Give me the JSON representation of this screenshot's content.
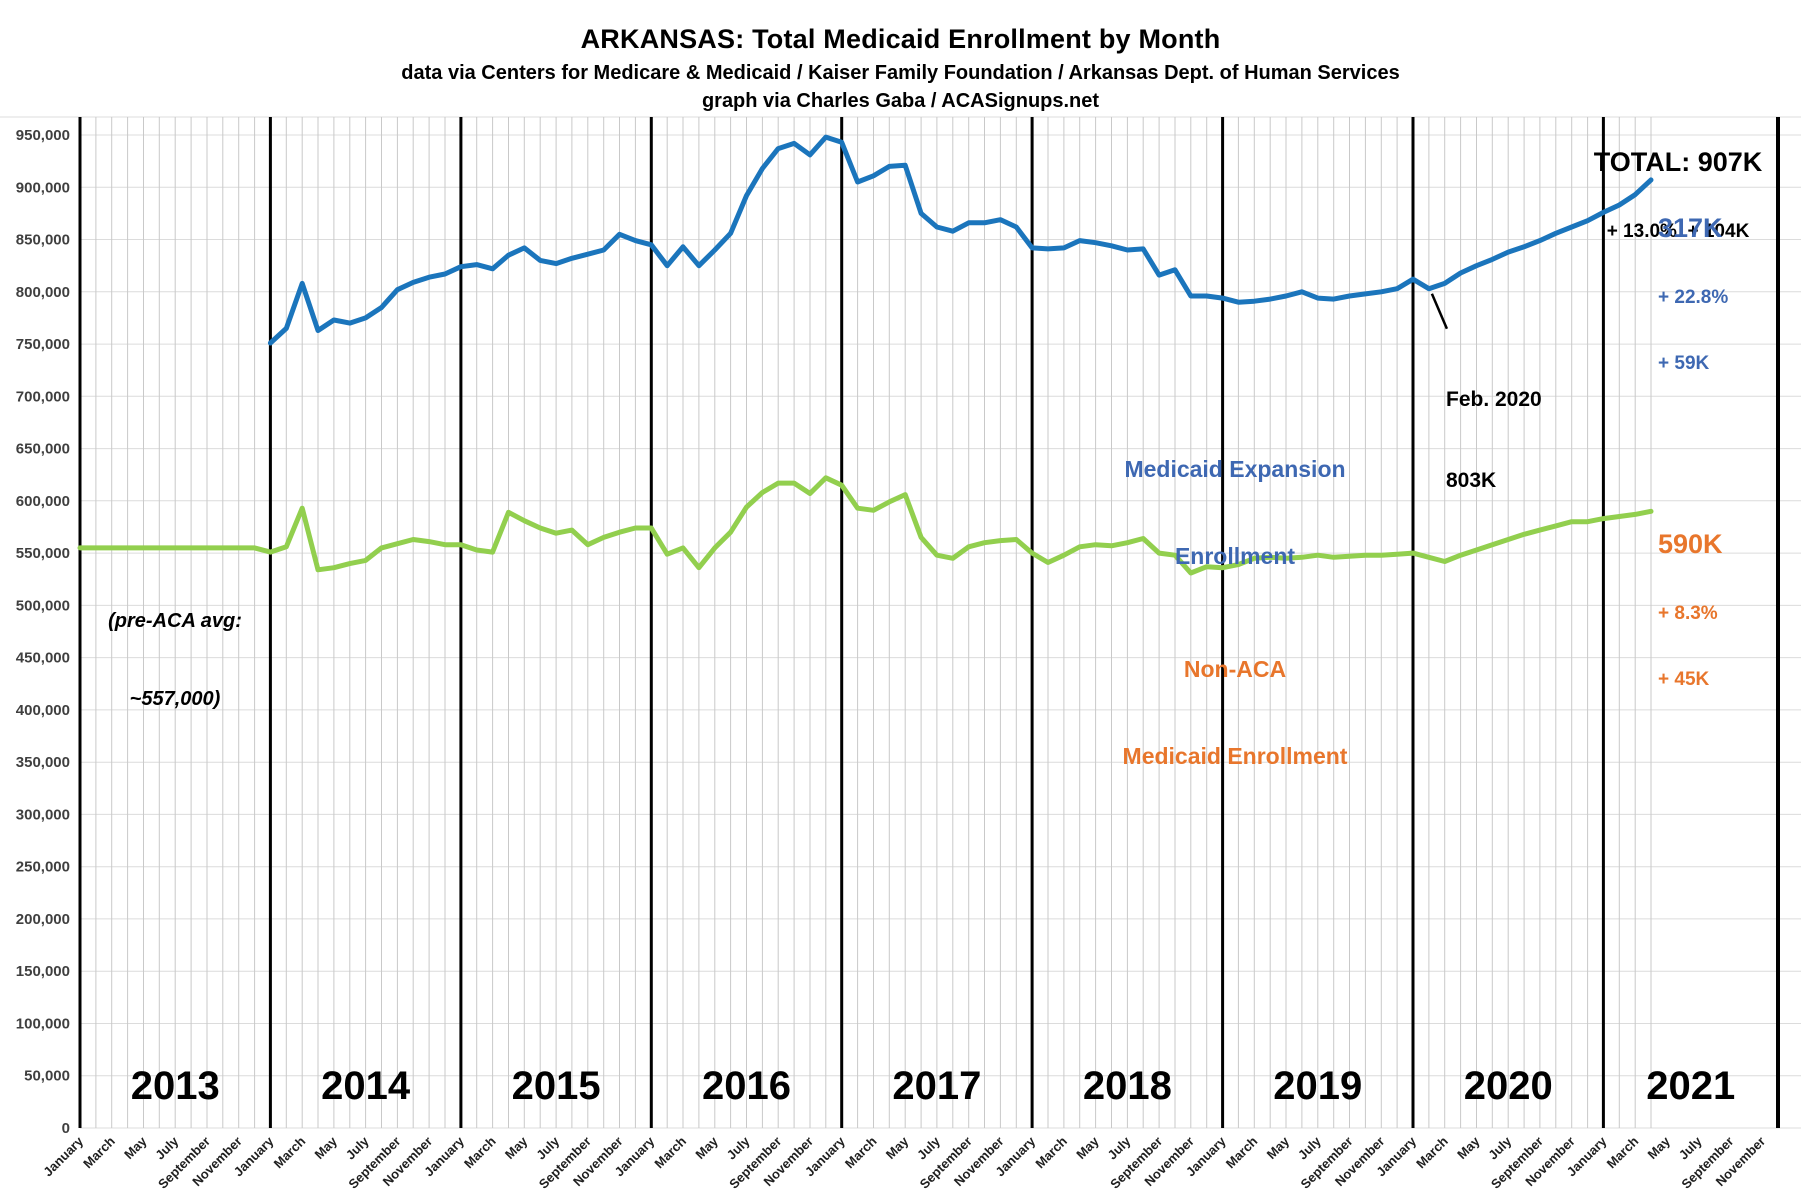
{
  "header": {
    "title": "ARKANSAS: Total Medicaid Enrollment by Month",
    "subtitle": "data via Centers for Medicare & Medicaid / Kaiser Family Foundation / Arkansas Dept. of Human Services",
    "credit": "graph via Charles Gaba / ACASignups.net"
  },
  "annotations": {
    "total": {
      "value_line": "TOTAL: 907K",
      "change_line": "+ 13.0%  + 104K"
    },
    "expansion_callout": {
      "value": "317K",
      "pct_change": "+ 22.8%",
      "abs_change": "+ 59K"
    },
    "nonaca_callout": {
      "value": "590K",
      "pct_change": "+ 8.3%",
      "abs_change": "+ 45K"
    },
    "expansion_legend": {
      "line1": "Medicaid Expansion",
      "line2": "Enrollment"
    },
    "nonaca_legend": {
      "line1": "Non-ACA",
      "line2": "Medicaid Enrollment"
    },
    "pre_aca": {
      "line1": "(pre-ACA avg:",
      "line2": "~557,000)"
    },
    "feb_2020": {
      "line1": "Feb. 2020",
      "line2": "803K",
      "month_index": 85,
      "value_thousands": 803
    }
  },
  "colors": {
    "total_line": "#1b75bc",
    "nonaca_line": "#92cf4e",
    "expansion_text": "#3e68b2",
    "nonaca_text": "#e8762c",
    "h_gridline": "#dcdcdc",
    "month_gridline": "#c9c9c9",
    "january_line": "#000000"
  },
  "chart_data": {
    "type": "line",
    "title": "ARKANSAS: Total Medicaid Enrollment by Month",
    "x_axis": {
      "start": "January 2013",
      "end": "December 2021",
      "months_shown": 108,
      "data_ends": "April 2021"
    },
    "month_tick_labels": [
      "January",
      "March",
      "May",
      "July",
      "September",
      "November"
    ],
    "year_labels": [
      "2013",
      "2014",
      "2015",
      "2016",
      "2017",
      "2018",
      "2019",
      "2020",
      "2021"
    ],
    "y_tick_labels": [
      "0",
      "50,000",
      "100,000",
      "150,000",
      "200,000",
      "250,000",
      "300,000",
      "350,000",
      "400,000",
      "450,000",
      "500,000",
      "550,000",
      "600,000",
      "650,000",
      "700,000",
      "750,000",
      "800,000",
      "850,000",
      "900,000",
      "950,000"
    ],
    "y_tick_step": 50000,
    "ylim": [
      0,
      950000
    ],
    "grid": "monthly vertical light gray, heavy black line at each January, horizontal every 50,000",
    "unit": "enrollees (series values stored in thousands)",
    "series": [
      {
        "name": "Total Medicaid Enrollment",
        "key": "total-enrollment-line",
        "color": "#1b75bc",
        "start_month": "January 2014",
        "start_month_index": 12,
        "values_thousands": [
          751,
          765,
          808,
          763,
          773,
          770,
          775,
          785,
          802,
          809,
          814,
          817,
          824,
          826,
          822,
          835,
          842,
          830,
          827,
          832,
          836,
          840,
          855,
          849,
          845,
          825,
          843,
          825,
          840,
          856,
          892,
          918,
          937,
          942,
          931,
          948,
          943,
          905,
          911,
          920,
          921,
          875,
          862,
          858,
          866,
          866,
          869,
          862,
          842,
          841,
          842,
          849,
          847,
          844,
          840,
          841,
          816,
          821,
          796,
          796,
          794,
          790,
          791,
          793,
          796,
          800,
          794,
          793,
          796,
          798,
          800,
          803,
          812,
          803,
          808,
          818,
          825,
          831,
          838,
          843,
          849,
          856,
          862,
          868,
          876,
          883,
          893,
          907
        ]
      },
      {
        "name": "Non-ACA Medicaid Enrollment",
        "key": "nonaca-enrollment-line",
        "color": "#92cf4e",
        "start_month": "January 2013",
        "start_month_index": 0,
        "values_thousands": [
          555,
          555,
          555,
          555,
          555,
          555,
          555,
          555,
          555,
          555,
          555,
          555,
          551,
          556,
          593,
          534,
          536,
          540,
          543,
          555,
          559,
          563,
          561,
          558,
          558,
          553,
          551,
          589,
          581,
          574,
          569,
          572,
          558,
          565,
          570,
          574,
          574,
          549,
          555,
          536,
          555,
          570,
          594,
          608,
          617,
          617,
          607,
          622,
          615,
          593,
          591,
          599,
          606,
          565,
          548,
          545,
          556,
          560,
          562,
          563,
          550,
          541,
          548,
          556,
          558,
          557,
          560,
          564,
          550,
          548,
          531,
          537,
          536,
          539,
          545,
          546,
          545,
          546,
          548,
          546,
          547,
          548,
          548,
          549,
          550,
          546,
          542,
          548,
          553,
          558,
          563,
          568,
          572,
          576,
          580,
          580,
          583,
          585,
          587,
          590
        ]
      }
    ]
  }
}
